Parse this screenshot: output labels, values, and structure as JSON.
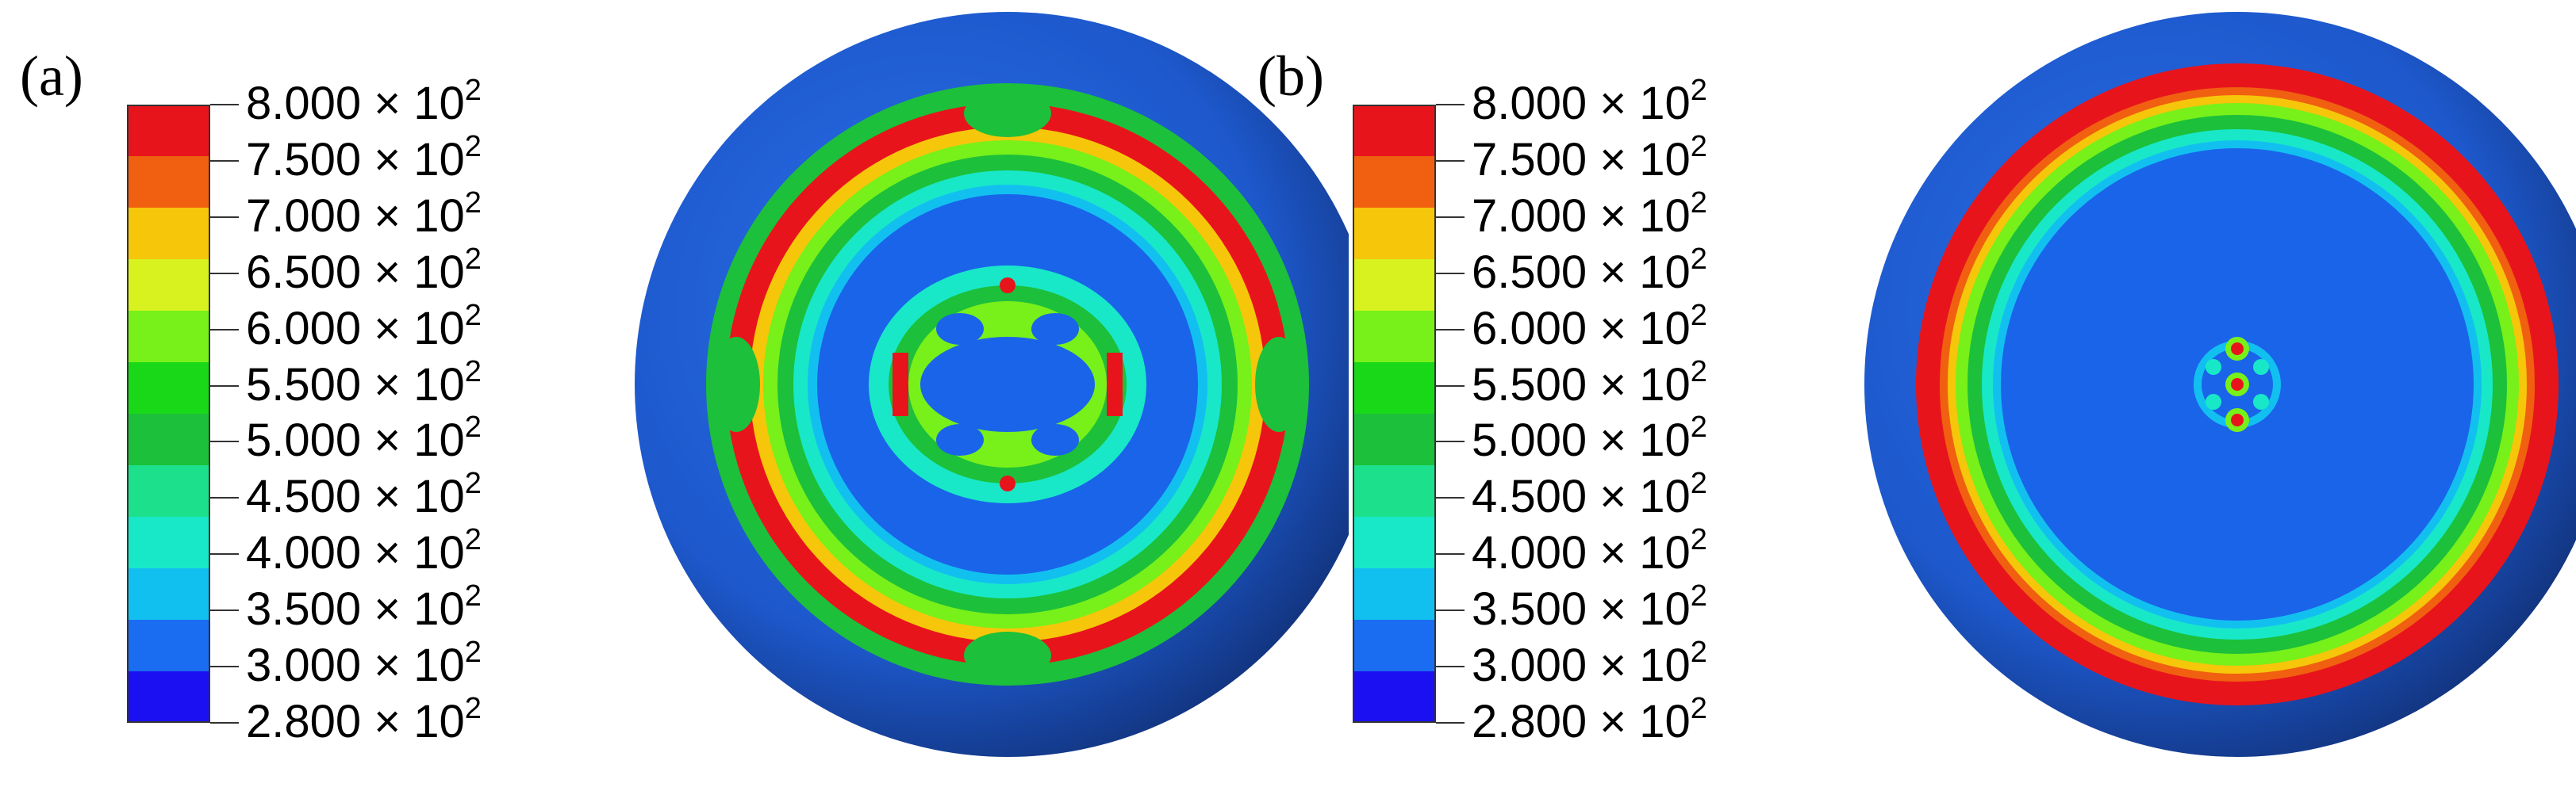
{
  "panels": [
    {
      "label": "(a)",
      "legend_values": [
        "8.000",
        "7.500",
        "7.000",
        "6.500",
        "6.000",
        "5.500",
        "5.000",
        "4.500",
        "4.000",
        "3.500",
        "3.000",
        "2.800"
      ],
      "legend_suffix": " × 10",
      "legend_exponent": "2"
    },
    {
      "label": "(b)",
      "legend_values": [
        "8.000",
        "7.500",
        "7.000",
        "6.500",
        "6.000",
        "5.500",
        "5.000",
        "4.500",
        "4.000",
        "3.500",
        "3.000",
        "2.800"
      ],
      "legend_suffix": " × 10",
      "legend_exponent": "2"
    }
  ],
  "colors": {
    "bands": [
      "#e8141c",
      "#f06010",
      "#f6c60a",
      "#d8f220",
      "#78f01a",
      "#18d818",
      "#1cc03a",
      "#1de08c",
      "#18e8c8",
      "#12c0f0",
      "#1a6cf0",
      "#1a10f2"
    ],
    "outer_rim": "#1e58d0",
    "outer_rim_shadow": "#143a8e",
    "base_blue": "#1a64ea",
    "ring_red": "#e8141c",
    "ring_green": "#1cc03a",
    "ring_cyan": "#18e8c8"
  }
}
